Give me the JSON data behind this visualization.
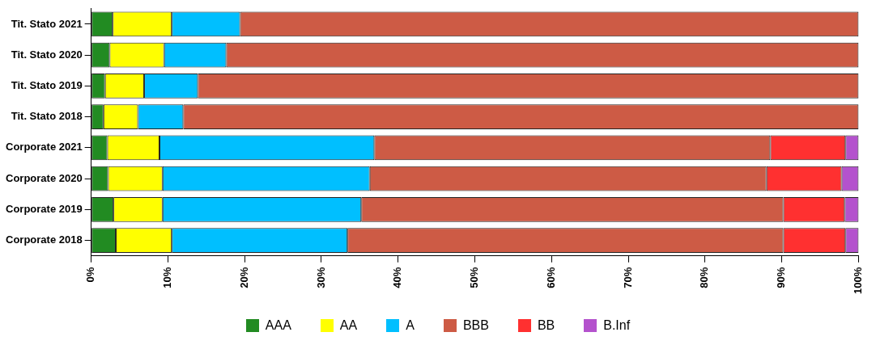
{
  "chart_data": {
    "type": "bar",
    "orientation": "horizontal",
    "stacked": true,
    "categories": [
      "Tit. Stato 2021",
      "Tit. Stato 2020",
      "Tit. Stato 2019",
      "Tit. Stato 2018",
      "Corporate 2021",
      "Corporate 2020",
      "Corporate 2019",
      "Corporate 2018"
    ],
    "series": [
      {
        "name": "AAA",
        "color": "#228b22",
        "values": [
          2.8,
          2.4,
          1.8,
          1.6,
          2.1,
          2.2,
          2.9,
          3.2
        ]
      },
      {
        "name": "AA",
        "color": "#ffff00",
        "values": [
          7.7,
          7.1,
          5.1,
          4.5,
          6.8,
          7.1,
          6.4,
          7.3
        ]
      },
      {
        "name": "A",
        "color": "#00bfff",
        "values": [
          8.9,
          8.1,
          7.0,
          5.9,
          28.0,
          27.0,
          25.9,
          22.9
        ]
      },
      {
        "name": "BBB",
        "color": "#cd5b45",
        "values": [
          80.6,
          82.4,
          86.1,
          88.0,
          51.6,
          51.7,
          55.0,
          56.8
        ]
      },
      {
        "name": "BB",
        "color": "#ff3030",
        "values": [
          0,
          0,
          0,
          0,
          9.8,
          9.8,
          8.0,
          8.1
        ]
      },
      {
        "name": "B.Inf",
        "color": "#b452cd",
        "values": [
          0,
          0,
          0,
          0,
          1.7,
          2.2,
          1.8,
          1.7
        ]
      }
    ],
    "xlim": [
      0,
      100
    ],
    "xticks": [
      {
        "value": 0,
        "label": "0%"
      },
      {
        "value": 10,
        "label": "10%"
      },
      {
        "value": 20,
        "label": "20%"
      },
      {
        "value": 30,
        "label": "30%"
      },
      {
        "value": 40,
        "label": "40%"
      },
      {
        "value": 50,
        "label": "50%"
      },
      {
        "value": 60,
        "label": "60%"
      },
      {
        "value": 70,
        "label": "70%"
      },
      {
        "value": 80,
        "label": "80%"
      },
      {
        "value": 90,
        "label": "90%"
      },
      {
        "value": 100,
        "label": "100%"
      }
    ],
    "grid": false,
    "legend": "bottom"
  }
}
